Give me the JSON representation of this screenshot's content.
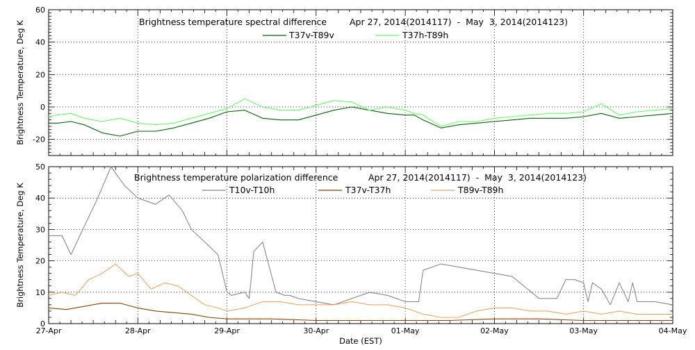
{
  "chart_data": [
    {
      "type": "line",
      "title": "Brightness temperature spectral difference",
      "date_range": "Apr 27, 2014(2014117)  -  May  3, 2014(2014123)",
      "ylabel": "Brightness Temperature, Deg K",
      "xlabel": "",
      "ylim": [
        -30,
        60
      ],
      "yticks": [
        -20,
        0,
        20,
        40,
        60
      ],
      "xlim": [
        0,
        7
      ],
      "grid": true,
      "legend_position": "top-center",
      "series": [
        {
          "name": "T37v-T89v",
          "color": "#006400",
          "x": [
            0,
            0.1,
            0.25,
            0.4,
            0.6,
            0.8,
            1.0,
            1.2,
            1.4,
            1.6,
            1.8,
            2.0,
            2.2,
            2.4,
            2.6,
            2.8,
            3.0,
            3.2,
            3.4,
            3.6,
            3.8,
            4.0,
            4.1,
            4.2,
            4.4,
            4.6,
            4.8,
            5.0,
            5.2,
            5.4,
            5.6,
            5.8,
            6.0,
            6.2,
            6.4,
            6.6,
            6.8,
            7.0
          ],
          "values": [
            -10,
            -10,
            -9,
            -11,
            -16,
            -18,
            -15,
            -15,
            -13,
            -10,
            -7,
            -3,
            -2,
            -7,
            -8,
            -8,
            -5,
            -2,
            0,
            -2,
            -4,
            -5,
            -5,
            -8,
            -13,
            -11,
            -10,
            -9,
            -8,
            -7,
            -7,
            -7,
            -6,
            -4,
            -7,
            -6,
            -5,
            -4
          ]
        },
        {
          "name": "T37h-T89h",
          "color": "#66ff66",
          "x": [
            0,
            0.1,
            0.25,
            0.4,
            0.6,
            0.8,
            1.0,
            1.2,
            1.4,
            1.6,
            1.8,
            2.0,
            2.2,
            2.4,
            2.6,
            2.8,
            3.0,
            3.2,
            3.4,
            3.6,
            3.8,
            4.0,
            4.1,
            4.2,
            4.4,
            4.6,
            4.8,
            5.0,
            5.2,
            5.4,
            5.6,
            5.8,
            6.0,
            6.2,
            6.4,
            6.6,
            6.8,
            7.0
          ],
          "values": [
            -6,
            -5,
            -4,
            -7,
            -9,
            -7,
            -10,
            -11,
            -10,
            -7,
            -4,
            -1,
            5,
            0,
            -2,
            -2,
            1,
            4,
            3,
            -2,
            0,
            -2,
            -4,
            -5,
            -12,
            -9,
            -9,
            -7,
            -6,
            -5,
            -4,
            -4,
            -3,
            2,
            -5,
            -3,
            -2,
            -1
          ]
        }
      ]
    },
    {
      "type": "line",
      "title": "Brightness temperature polarization difference",
      "date_range": "Apr 27, 2014(2014117)  -  May  3, 2014(2014123)",
      "ylabel": "Brightness Temperature, Deg K",
      "xlabel": "Date (EST)",
      "ylim": [
        0,
        50
      ],
      "yticks": [
        0,
        10,
        20,
        30,
        40,
        50
      ],
      "xlim": [
        0,
        7
      ],
      "xticks": [
        "27-Apr",
        "28-Apr",
        "29-Apr",
        "30-Apr",
        "01-May",
        "02-May",
        "03-May",
        "04-May"
      ],
      "grid": true,
      "legend_position": "top-center",
      "series": [
        {
          "name": "T10v-T10h",
          "color": "#888888",
          "x": [
            0,
            0.15,
            0.25,
            0.4,
            0.55,
            0.7,
            0.85,
            1.0,
            1.2,
            1.35,
            1.5,
            1.6,
            1.75,
            1.9,
            2.0,
            2.05,
            2.2,
            2.25,
            2.3,
            2.4,
            2.55,
            2.65,
            2.7,
            2.8,
            3.0,
            3.2,
            3.4,
            3.6,
            3.8,
            4.0,
            4.15,
            4.2,
            4.4,
            4.6,
            4.8,
            5.0,
            5.2,
            5.5,
            5.6,
            5.7,
            5.8,
            5.9,
            6.0,
            6.05,
            6.1,
            6.2,
            6.3,
            6.4,
            6.5,
            6.55,
            6.6,
            6.8,
            7.0
          ],
          "values": [
            28,
            28,
            22,
            31,
            40,
            50,
            44,
            40,
            38,
            41,
            36,
            30,
            26,
            22,
            10,
            9,
            10,
            8,
            23,
            26,
            10,
            9,
            9,
            8,
            7,
            6,
            8,
            10,
            9,
            7,
            7,
            17,
            19,
            18,
            17,
            16,
            15,
            8,
            8,
            8,
            14,
            14,
            13,
            7,
            13,
            11,
            6,
            13,
            7,
            13,
            7,
            7,
            6
          ]
        },
        {
          "name": "T37v-T37h",
          "color": "#8b4000",
          "x": [
            0,
            0.2,
            0.4,
            0.6,
            0.8,
            1.0,
            1.2,
            1.4,
            1.6,
            1.8,
            2.0,
            2.5,
            3.0,
            3.5,
            4.0,
            4.5,
            5.0,
            5.5,
            6.0,
            6.5,
            7.0
          ],
          "values": [
            5,
            4.5,
            5.5,
            6.5,
            6.5,
            5,
            4,
            3.5,
            3,
            2,
            1.5,
            1.5,
            1,
            1,
            1,
            1,
            1.5,
            1.5,
            1,
            1,
            1
          ]
        },
        {
          "name": "T89v-T89h",
          "color": "#f4a460",
          "x": [
            0,
            0.15,
            0.3,
            0.45,
            0.6,
            0.75,
            0.9,
            1.0,
            1.15,
            1.3,
            1.45,
            1.6,
            1.75,
            1.9,
            2.0,
            2.2,
            2.4,
            2.6,
            2.8,
            3.0,
            3.2,
            3.4,
            3.6,
            3.8,
            4.0,
            4.2,
            4.4,
            4.6,
            4.8,
            5.0,
            5.2,
            5.4,
            5.6,
            5.8,
            6.0,
            6.2,
            6.4,
            6.6,
            6.8,
            7.0
          ],
          "values": [
            9,
            10,
            9,
            14,
            16,
            19,
            15,
            16,
            11,
            13,
            12,
            9,
            6,
            5,
            4,
            5,
            7,
            7,
            6,
            6,
            6,
            7,
            6,
            6,
            5,
            3,
            2,
            2,
            4,
            5,
            5,
            4,
            4,
            3,
            4,
            3,
            4,
            3,
            3,
            3
          ]
        }
      ]
    }
  ]
}
